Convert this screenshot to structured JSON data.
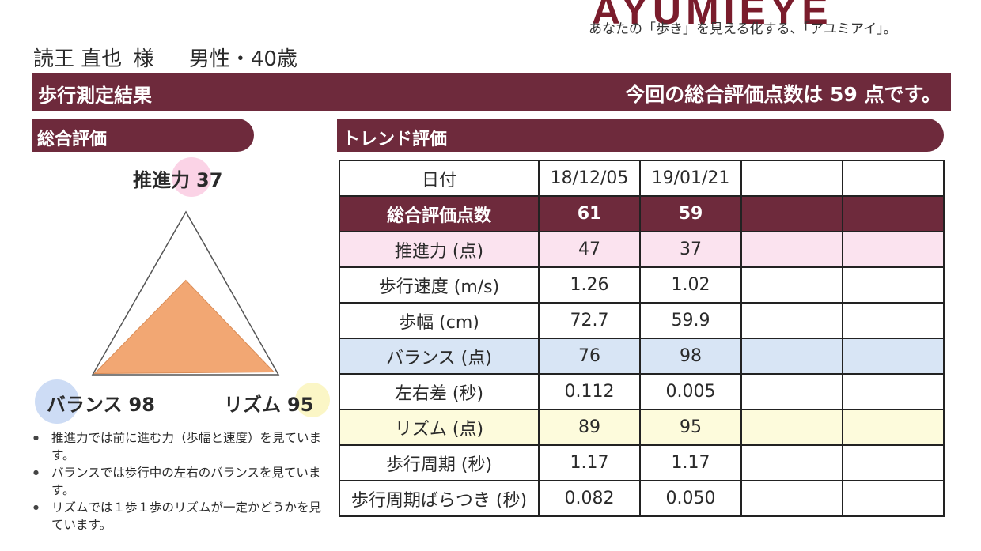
{
  "header": {
    "logo": "AYUMIEYE",
    "tagline": "あなたの「歩き」を見える化する、「アユミアイ」。"
  },
  "patient": {
    "name": "読王 直也",
    "suffix": "様",
    "sex_age": "男性・40歳"
  },
  "main_bar": {
    "title": "歩行測定結果",
    "summary": "今回の総合評価点数は 59 点です。"
  },
  "overall": {
    "section_title": "総合評価",
    "propulsion": {
      "label": "推進力",
      "value": "37",
      "score": 37
    },
    "balance": {
      "label": "バランス",
      "value": "98",
      "score": 98
    },
    "rhythm": {
      "label": "リズム",
      "value": "95",
      "score": 95
    },
    "colors": {
      "propulsion": "#fbd3e6",
      "balance": "#cddcf5",
      "rhythm": "#fbf6c6",
      "fill": "#f2a773"
    },
    "notes": [
      "推進力では前に進む力（歩幅と速度）を見ています。",
      "バランスでは歩行中の左右のバランスを見ています。",
      "リズムでは１歩１歩のリズムが一定かどうかを見ています。"
    ]
  },
  "trend": {
    "section_title": "トレンド評価",
    "header": [
      "日付",
      "18/12/05",
      "19/01/21",
      "",
      ""
    ],
    "rows": [
      {
        "style": "total",
        "cells": [
          "総合評価点数",
          "61",
          "59",
          "",
          ""
        ]
      },
      {
        "style": "pink",
        "cells": [
          "推進力 (点)",
          "47",
          "37",
          "",
          ""
        ]
      },
      {
        "style": "plain",
        "cells": [
          "歩行速度 (m/s)",
          "1.26",
          "1.02",
          "",
          ""
        ]
      },
      {
        "style": "plain",
        "cells": [
          "歩幅 (cm)",
          "72.7",
          "59.9",
          "",
          ""
        ]
      },
      {
        "style": "blue",
        "cells": [
          "バランス (点)",
          "76",
          "98",
          "",
          ""
        ]
      },
      {
        "style": "plain",
        "cells": [
          "左右差 (秒)",
          "0.112",
          "0.005",
          "",
          ""
        ]
      },
      {
        "style": "yellow",
        "cells": [
          "リズム (点)",
          "89",
          "95",
          "",
          ""
        ]
      },
      {
        "style": "plain",
        "cells": [
          "歩行周期 (秒)",
          "1.17",
          "1.17",
          "",
          ""
        ]
      },
      {
        "style": "plain",
        "cells": [
          "歩行周期ばらつき (秒)",
          "0.082",
          "0.050",
          "",
          ""
        ]
      }
    ]
  },
  "colors": {
    "maroon": "#6e2a3c",
    "text": "#2a2a2a"
  }
}
